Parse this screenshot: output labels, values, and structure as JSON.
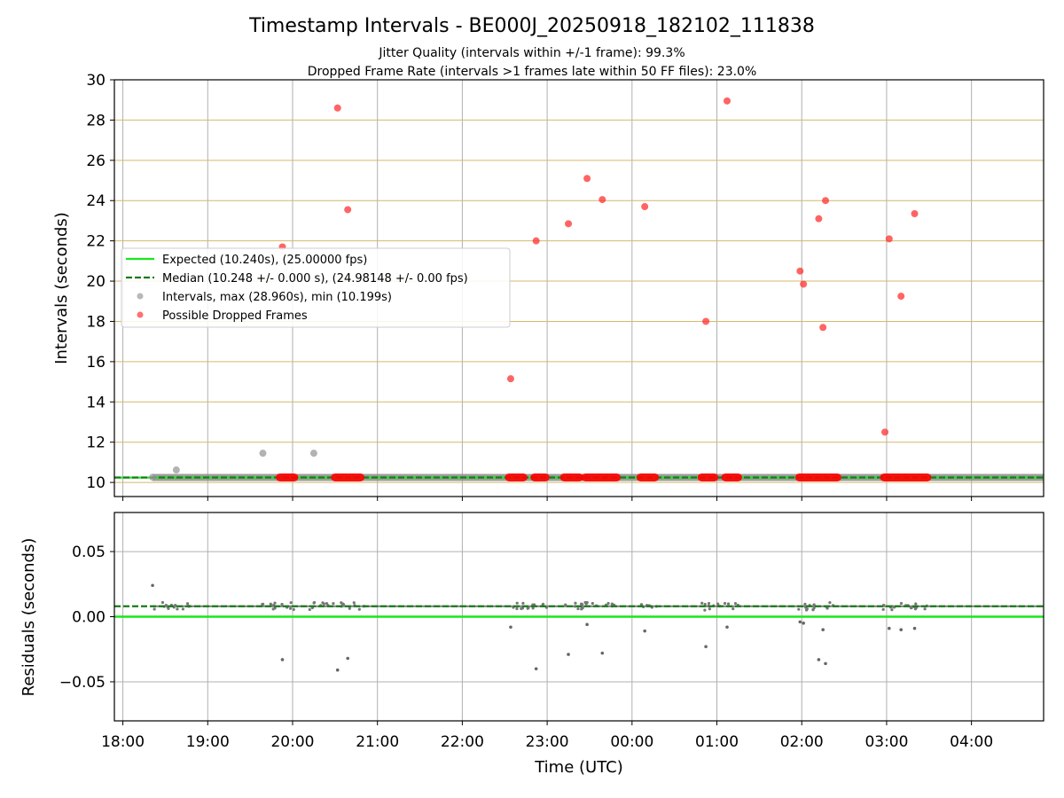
{
  "chart_data": {
    "type": "scatter",
    "title": "Timestamp Intervals - BE000J_20250918_182102_111838",
    "subtitles": [
      "Jitter Quality (intervals within +/-1 frame): 99.3%",
      "Dropped Frame Rate (intervals >1 frames late within 50 FF files): 23.0%"
    ],
    "xlabel": "Time (UTC)",
    "x_ticks": [
      "18:00",
      "19:00",
      "20:00",
      "21:00",
      "22:00",
      "23:00",
      "00:00",
      "01:00",
      "02:00",
      "03:00",
      "04:00"
    ],
    "x_tick_hours": [
      0,
      1,
      2,
      3,
      4,
      5,
      6,
      7,
      8,
      9,
      10
    ],
    "x_unit": "hours since 18:00 UTC",
    "xlim": [
      -0.1,
      10.85
    ],
    "top_panel": {
      "ylabel": "Intervals (seconds)",
      "ylim": [
        9.3,
        30
      ],
      "y_ticks": [
        10,
        12,
        14,
        16,
        18,
        20,
        22,
        24,
        26,
        28,
        30
      ],
      "expected": 10.24,
      "median": 10.248,
      "legend": {
        "placement": "center-left",
        "entries": [
          {
            "label": "Expected (10.240s), (25.00000 fps)",
            "style": "solid",
            "color": "#18e818"
          },
          {
            "label": "Median (10.248 +/- 0.000 s), (24.98148 +/- 0.00 fps)",
            "style": "dashed",
            "color": "#1a7a1a"
          },
          {
            "label": "Intervals, max (28.960s), min (10.199s)",
            "style": "dot",
            "color": "#9a9a9a"
          },
          {
            "label": "Possible Dropped Frames",
            "style": "dot",
            "color": "#ff4040"
          }
        ]
      },
      "interval_band": {
        "x_start": 0.35,
        "x_end": 10.85,
        "y": 10.248
      },
      "intervals_gray": [
        {
          "x": 0.35,
          "y": 10.26
        },
        {
          "x": 0.63,
          "y": 10.62
        },
        {
          "x": 1.65,
          "y": 11.45
        },
        {
          "x": 2.25,
          "y": 11.45
        }
      ],
      "dropped_frames": [
        {
          "x": 1.88,
          "y": 21.7
        },
        {
          "x": 2.53,
          "y": 28.6
        },
        {
          "x": 2.65,
          "y": 23.55
        },
        {
          "x": 4.57,
          "y": 15.15
        },
        {
          "x": 4.87,
          "y": 22.0
        },
        {
          "x": 5.25,
          "y": 22.85
        },
        {
          "x": 5.47,
          "y": 25.1
        },
        {
          "x": 5.65,
          "y": 24.05
        },
        {
          "x": 6.15,
          "y": 23.7
        },
        {
          "x": 6.87,
          "y": 18.0
        },
        {
          "x": 7.12,
          "y": 28.95
        },
        {
          "x": 7.98,
          "y": 20.5
        },
        {
          "x": 8.02,
          "y": 19.85
        },
        {
          "x": 8.2,
          "y": 23.1
        },
        {
          "x": 8.25,
          "y": 17.7
        },
        {
          "x": 8.28,
          "y": 24.0
        },
        {
          "x": 8.98,
          "y": 12.5
        },
        {
          "x": 9.03,
          "y": 22.1
        },
        {
          "x": 9.17,
          "y": 19.25
        },
        {
          "x": 9.33,
          "y": 23.35
        }
      ],
      "dropped_frame_clusters_at_baseline": [
        [
          1.85,
          2.02
        ],
        [
          2.5,
          2.8
        ],
        [
          4.55,
          4.72
        ],
        [
          4.85,
          4.98
        ],
        [
          5.2,
          5.38
        ],
        [
          5.45,
          5.82
        ],
        [
          6.1,
          6.27
        ],
        [
          6.82,
          6.97
        ],
        [
          7.1,
          7.25
        ],
        [
          7.97,
          8.42
        ],
        [
          8.97,
          9.48
        ]
      ]
    },
    "bottom_panel": {
      "ylabel": "Residuals (seconds)",
      "ylim": [
        -0.08,
        0.08
      ],
      "y_ticks": [
        -0.05,
        0.0,
        0.05
      ],
      "y_tick_labels": [
        "−0.05",
        "0.00",
        "0.05"
      ],
      "expected_residual": 0.0,
      "median_residual": 0.008,
      "outliers": [
        {
          "x": 0.35,
          "y": 0.024
        },
        {
          "x": 1.88,
          "y": -0.033
        },
        {
          "x": 2.53,
          "y": -0.041
        },
        {
          "x": 2.65,
          "y": -0.032
        },
        {
          "x": 4.57,
          "y": -0.008
        },
        {
          "x": 4.87,
          "y": -0.04
        },
        {
          "x": 5.25,
          "y": -0.029
        },
        {
          "x": 5.47,
          "y": -0.006
        },
        {
          "x": 5.65,
          "y": -0.028
        },
        {
          "x": 6.15,
          "y": -0.011
        },
        {
          "x": 6.87,
          "y": -0.023
        },
        {
          "x": 7.12,
          "y": -0.008
        },
        {
          "x": 7.98,
          "y": -0.004
        },
        {
          "x": 8.02,
          "y": -0.005
        },
        {
          "x": 8.2,
          "y": -0.033
        },
        {
          "x": 8.25,
          "y": -0.01
        },
        {
          "x": 8.28,
          "y": -0.036
        },
        {
          "x": 9.03,
          "y": -0.009
        },
        {
          "x": 9.17,
          "y": -0.01
        },
        {
          "x": 9.33,
          "y": -0.009
        }
      ],
      "residual_clusters": [
        [
          0.35,
          0.8
        ],
        [
          1.6,
          2.05
        ],
        [
          2.2,
          2.85
        ],
        [
          4.55,
          5.0
        ],
        [
          5.2,
          5.85
        ],
        [
          6.1,
          6.3
        ],
        [
          6.8,
          7.25
        ],
        [
          7.95,
          8.45
        ],
        [
          8.95,
          9.5
        ]
      ]
    }
  }
}
